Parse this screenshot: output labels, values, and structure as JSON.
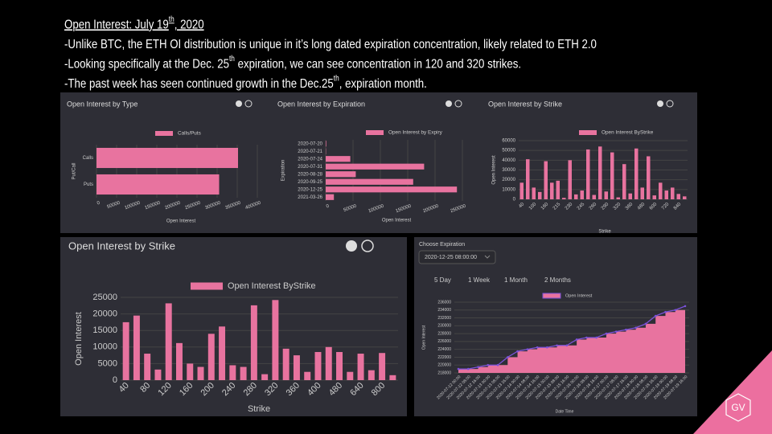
{
  "slide": {
    "lines": [
      [
        {
          "text": "Open Interest: July 19",
          "sup": false
        },
        {
          "text": "th",
          "sup": true
        },
        {
          "text": ", 2020",
          "sup": false
        }
      ],
      [
        {
          "text": "-Unlike BTC, the ETH OI distribution is unique in it’s long dated expiration concentration, likely related to ETH 2.0",
          "sup": false
        }
      ],
      [
        {
          "text": "-Looking specifically at the Dec. 25",
          "sup": false
        },
        {
          "text": "th",
          "sup": true
        },
        {
          "text": " expiration, we can see concentration in 120 and 320 strikes.",
          "sup": false
        }
      ],
      [
        {
          "text": "-The past week has seen continued growth in the Dec.25",
          "sup": false
        },
        {
          "text": "th",
          "sup": true
        },
        {
          "text": ", expiration month.",
          "sup": false
        }
      ]
    ]
  },
  "ui": {
    "choose_label": "Choose Expiration",
    "dropdown": "2020-12-25 08:00:00",
    "ranges": [
      "5 Day",
      "1 Week",
      "1 Month",
      "2 Months"
    ],
    "logo": "GV"
  },
  "chart_data": [
    {
      "type": "barh",
      "title": "Open Interest by Type",
      "xlabel": "Open Interest",
      "ylabel": "Put/Call",
      "categories": [
        "Calls",
        "Puts"
      ],
      "series": [
        {
          "name": "Calls/Puts",
          "color": "#e8739f",
          "values": [
            352000,
            305000
          ]
        }
      ],
      "xlim": [
        0,
        400000
      ],
      "xticks": [
        0,
        50000,
        100000,
        150000,
        200000,
        250000,
        300000,
        350000,
        400000
      ],
      "grid": true
    },
    {
      "type": "barh",
      "title": "Open Interest by Expiration",
      "xlabel": "Open Interest",
      "ylabel": "Expiration",
      "categories": [
        "2020-07-20",
        "2020-07-21",
        "2020-07-24",
        "2020-07-31",
        "2020-08-28",
        "2020-09-25",
        "2020-12-25",
        "2021-03-26"
      ],
      "series": [
        {
          "name": "Open Interest by Expiry",
          "color": "#e8739f",
          "values": [
            1000,
            500,
            45000,
            180000,
            55000,
            160000,
            240000,
            15000
          ]
        }
      ],
      "xlim": [
        0,
        250000
      ],
      "xticks": [
        0,
        50000,
        100000,
        150000,
        200000,
        250000
      ],
      "grid": true
    },
    {
      "type": "bar",
      "title": "Open Interest by Strike",
      "xlabel": "Strike",
      "ylabel": "Open Interest",
      "categories": [
        "40",
        null,
        "100",
        null,
        "160",
        null,
        "215",
        null,
        "230",
        null,
        "245",
        null,
        "260",
        null,
        "290",
        null,
        "320",
        null,
        "360",
        null,
        "480",
        null,
        "600",
        null,
        "720",
        null,
        "840",
        null
      ],
      "series": [
        {
          "name": "Open Interest ByStrike",
          "color": "#e8739f",
          "values": [
            17000,
            41000,
            12000,
            7500,
            39000,
            17000,
            19000,
            1500,
            40000,
            5000,
            9000,
            51000,
            4500,
            54000,
            8000,
            48000,
            2000,
            36000,
            6000,
            52000,
            12000,
            44000,
            4000,
            17000,
            9000,
            12000,
            5500,
            3000
          ]
        }
      ],
      "ylim": [
        0,
        60000
      ],
      "yticks": [
        0,
        10000,
        20000,
        30000,
        40000,
        50000,
        60000
      ],
      "grid": true
    },
    {
      "type": "bar",
      "title": "Open Interest by Strike",
      "xlabel": "Strike",
      "ylabel": "Open Interest",
      "categories": [
        "40",
        null,
        "80",
        null,
        "120",
        null,
        "160",
        null,
        "200",
        null,
        "240",
        null,
        "280",
        null,
        "320",
        null,
        "360",
        null,
        "400",
        null,
        "480",
        null,
        "640",
        null,
        "800",
        null
      ],
      "series": [
        {
          "name": "Open Interest ByStrike",
          "color": "#e8739f",
          "values": [
            17500,
            19500,
            8000,
            3200,
            23200,
            11200,
            5000,
            4000,
            14000,
            16200,
            4500,
            4000,
            22600,
            1800,
            24200,
            9500,
            7500,
            2500,
            8500,
            10000,
            8500,
            2500,
            8000,
            3000,
            8200,
            1500
          ]
        }
      ],
      "ylim": [
        0,
        25000
      ],
      "yticks": [
        0,
        5000,
        10000,
        15000,
        20000,
        25000
      ],
      "grid": true
    },
    {
      "type": "area",
      "xlabel": "Date Time",
      "ylabel": "Open Interest",
      "x": [
        "2020-07-12 00:00",
        "2020-07-12 08:00",
        "2020-07-12 16:00",
        "2020-07-13 00:00",
        "2020-07-13 08:00",
        "2020-07-13 16:00",
        "2020-07-14 00:00",
        "2020-07-14 08:00",
        "2020-07-14 16:00",
        "2020-07-15 00:00",
        "2020-07-15 08:00",
        "2020-07-15 16:00",
        "2020-07-16 00:00",
        "2020-07-16 08:00",
        "2020-07-16 16:00",
        "2020-07-17 00:00",
        "2020-07-17 08:00",
        "2020-07-17 16:00",
        "2020-07-18 00:00",
        "2020-07-18 08:00",
        "2020-07-18 16:00",
        "2020-07-19 00:00",
        "2020-07-19 08:00",
        "2020-07-19 16:00"
      ],
      "series": [
        {
          "name": "Open Interest",
          "color": "#e8739f",
          "values": [
            219000,
            219000,
            219500,
            220000,
            220000,
            222000,
            223500,
            224000,
            224500,
            224500,
            225000,
            225000,
            226500,
            227000,
            227000,
            228000,
            228500,
            229000,
            229500,
            230500,
            232500,
            233500,
            234000,
            235000
          ]
        }
      ],
      "ylim": [
        218000,
        236000
      ],
      "yticks": [
        218000,
        220000,
        222000,
        224000,
        226000,
        228000,
        230000,
        232000,
        234000,
        236000
      ],
      "grid": true
    }
  ]
}
